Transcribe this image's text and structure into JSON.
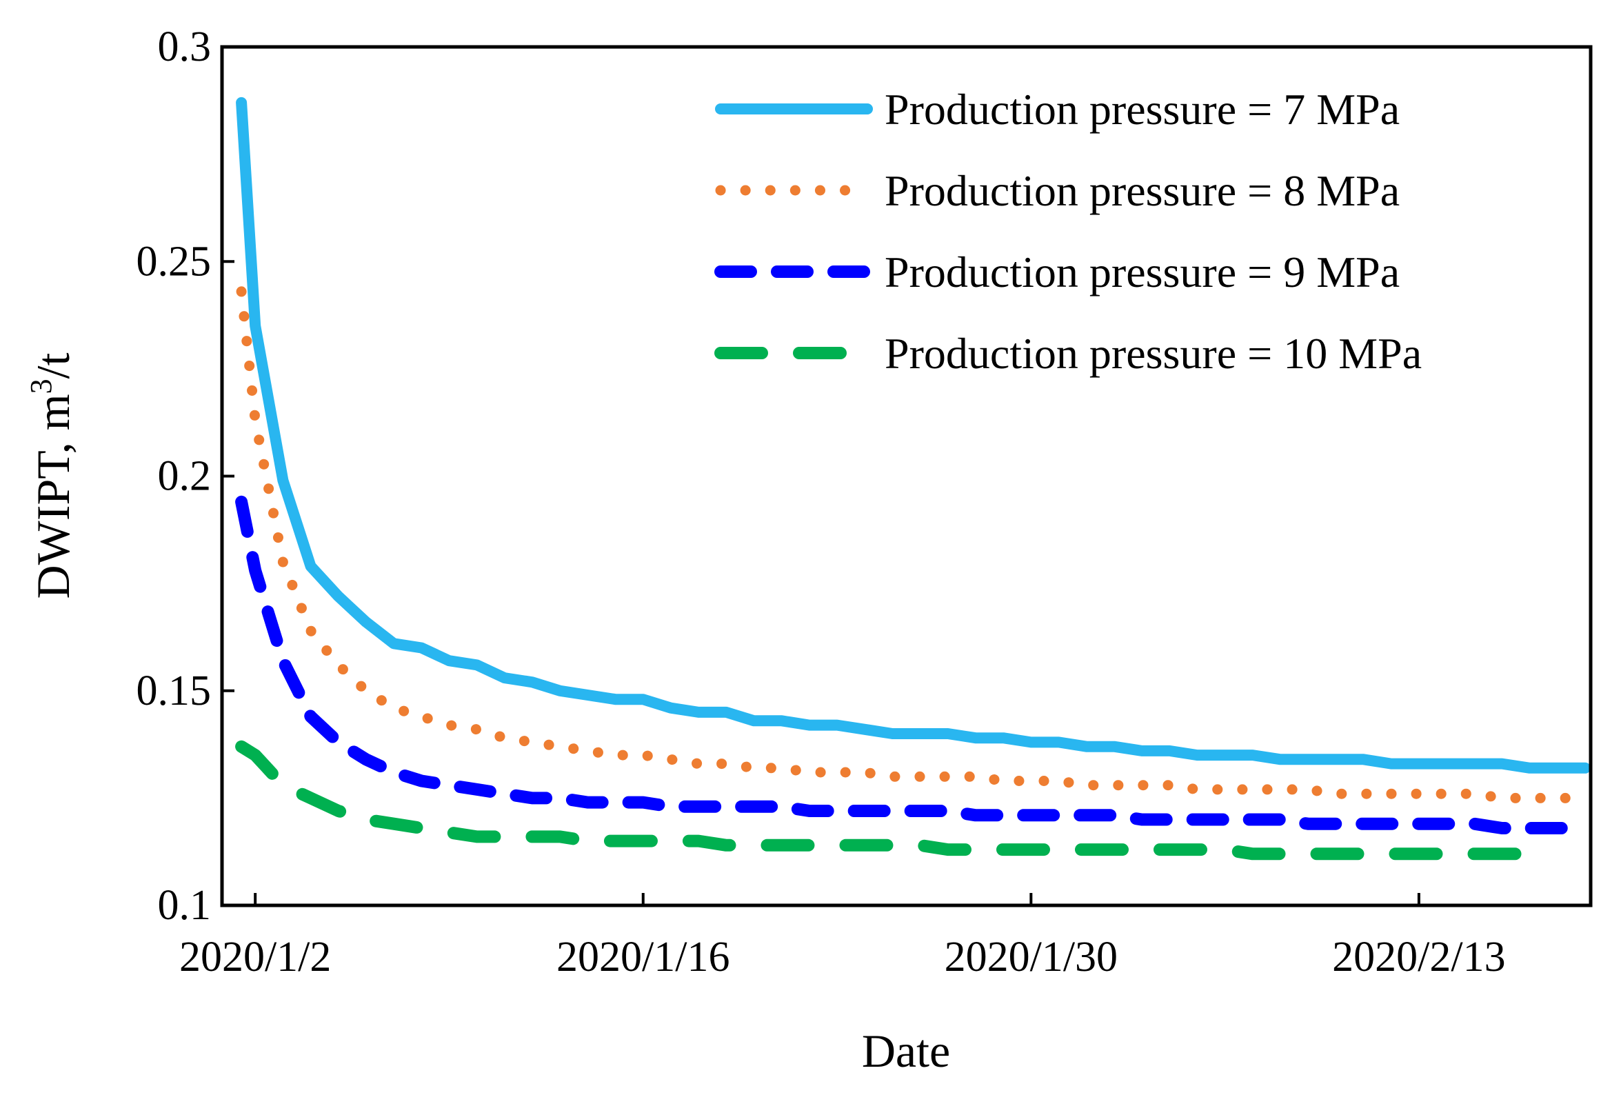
{
  "chart_data": {
    "type": "line",
    "title": "",
    "xlabel": "Date",
    "ylabel": "DWIPT, m",
    "ylabel_superscript": "3",
    "ylabel_suffix": "/t",
    "ylim": [
      0.1,
      0.3
    ],
    "yticks": [
      "0.1",
      "0.15",
      "0.2",
      "0.25",
      "0.3"
    ],
    "ytick_values": [
      0.1,
      0.15,
      0.2,
      0.25,
      0.3
    ],
    "x_day_range": [
      1,
      50
    ],
    "xticks": [
      "2020/1/2",
      "2020/1/16",
      "2020/1/30",
      "2020/2/13"
    ],
    "xtick_days": [
      2,
      16,
      30,
      44
    ],
    "legend_position": "top-right",
    "series": [
      {
        "name": "Production pressure = 7 MPa",
        "color": "#29b6f0",
        "style": "solid",
        "x": [
          1.5,
          2,
          3,
          4,
          5,
          6,
          7,
          8,
          9,
          10,
          11,
          12,
          13,
          14,
          15,
          16,
          17,
          18,
          19,
          20,
          21,
          22,
          23,
          24,
          25,
          26,
          27,
          28,
          29,
          30,
          31,
          32,
          33,
          34,
          35,
          36,
          37,
          38,
          39,
          40,
          41,
          42,
          43,
          44,
          45,
          46,
          47,
          48,
          49,
          50
        ],
        "values": [
          0.287,
          0.235,
          0.199,
          0.179,
          0.172,
          0.166,
          0.161,
          0.16,
          0.157,
          0.156,
          0.153,
          0.152,
          0.15,
          0.149,
          0.148,
          0.148,
          0.146,
          0.145,
          0.145,
          0.143,
          0.143,
          0.142,
          0.142,
          0.141,
          0.14,
          0.14,
          0.14,
          0.139,
          0.139,
          0.138,
          0.138,
          0.137,
          0.137,
          0.136,
          0.136,
          0.135,
          0.135,
          0.135,
          0.134,
          0.134,
          0.134,
          0.134,
          0.133,
          0.133,
          0.133,
          0.133,
          0.133,
          0.132,
          0.132,
          0.132
        ]
      },
      {
        "name": "Production pressure = 8 MPa",
        "color": "#ee7d31",
        "style": "dotted",
        "x": [
          1.5,
          2,
          3,
          4,
          5,
          6,
          7,
          8,
          9,
          10,
          11,
          12,
          13,
          14,
          15,
          16,
          17,
          18,
          19,
          20,
          21,
          22,
          23,
          24,
          25,
          26,
          27,
          28,
          29,
          30,
          31,
          32,
          33,
          34,
          35,
          36,
          37,
          38,
          39,
          40,
          41,
          42,
          43,
          44,
          45,
          46,
          47,
          48,
          49,
          50
        ],
        "values": [
          0.243,
          0.213,
          0.18,
          0.164,
          0.156,
          0.15,
          0.146,
          0.144,
          0.142,
          0.141,
          0.139,
          0.138,
          0.137,
          0.136,
          0.135,
          0.135,
          0.134,
          0.133,
          0.133,
          0.132,
          0.132,
          0.131,
          0.131,
          0.131,
          0.13,
          0.13,
          0.13,
          0.13,
          0.129,
          0.129,
          0.129,
          0.128,
          0.128,
          0.128,
          0.128,
          0.127,
          0.127,
          0.127,
          0.127,
          0.127,
          0.126,
          0.126,
          0.126,
          0.126,
          0.126,
          0.126,
          0.125,
          0.125,
          0.125,
          0.125
        ]
      },
      {
        "name": "Production pressure = 9 MPa",
        "color": "#0000ff",
        "style": "dashed",
        "x": [
          1.5,
          2,
          3,
          4,
          5,
          6,
          7,
          8,
          9,
          10,
          11,
          12,
          13,
          14,
          15,
          16,
          17,
          18,
          19,
          20,
          21,
          22,
          23,
          24,
          25,
          26,
          27,
          28,
          29,
          30,
          31,
          32,
          33,
          34,
          35,
          36,
          37,
          38,
          39,
          40,
          41,
          42,
          43,
          44,
          45,
          46,
          47,
          48,
          49,
          50
        ],
        "values": [
          0.194,
          0.178,
          0.157,
          0.144,
          0.138,
          0.134,
          0.131,
          0.129,
          0.128,
          0.127,
          0.126,
          0.125,
          0.125,
          0.124,
          0.124,
          0.124,
          0.123,
          0.123,
          0.123,
          0.123,
          0.123,
          0.122,
          0.122,
          0.122,
          0.122,
          0.122,
          0.122,
          0.121,
          0.121,
          0.121,
          0.121,
          0.121,
          0.121,
          0.12,
          0.12,
          0.12,
          0.12,
          0.12,
          0.12,
          0.119,
          0.119,
          0.119,
          0.119,
          0.119,
          0.119,
          0.119,
          0.118,
          0.118,
          0.118,
          0.118
        ]
      },
      {
        "name": "Production pressure = 10 MPa",
        "color": "#00b050",
        "style": "long-dash",
        "x": [
          1.5,
          2,
          3,
          4,
          5,
          6,
          7,
          8,
          9,
          10,
          11,
          12,
          13,
          14,
          15,
          16,
          17,
          18,
          19,
          20,
          21,
          22,
          23,
          24,
          25,
          26,
          27,
          28,
          29,
          30,
          31,
          32,
          33,
          34,
          35,
          36,
          37,
          38,
          39,
          40,
          41,
          42,
          43,
          44,
          45,
          46,
          47,
          48
        ],
        "values": [
          0.137,
          0.135,
          0.128,
          0.125,
          0.122,
          0.12,
          0.119,
          0.118,
          0.117,
          0.116,
          0.116,
          0.116,
          0.116,
          0.115,
          0.115,
          0.115,
          0.115,
          0.115,
          0.114,
          0.114,
          0.114,
          0.114,
          0.114,
          0.114,
          0.114,
          0.114,
          0.113,
          0.113,
          0.113,
          0.113,
          0.113,
          0.113,
          0.113,
          0.113,
          0.113,
          0.113,
          0.113,
          0.112,
          0.112,
          0.112,
          0.112,
          0.112,
          0.112,
          0.112,
          0.112,
          0.112,
          0.112,
          0.112
        ]
      }
    ]
  }
}
